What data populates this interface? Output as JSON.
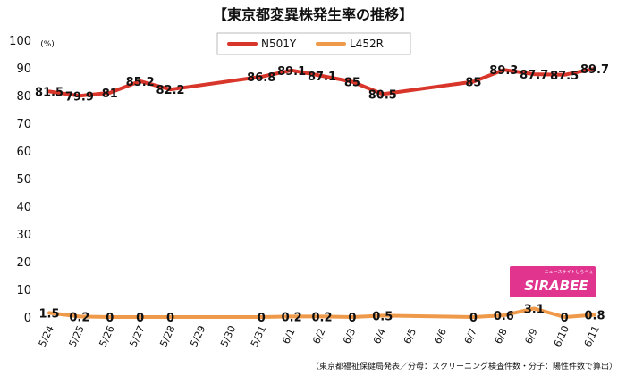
{
  "chart_data": {
    "type": "line",
    "title": "【東京都変異株発生率の推移】",
    "unit": "(%)",
    "categories": [
      "5/24",
      "5/25",
      "5/26",
      "5/27",
      "5/28",
      "5/29",
      "5/30",
      "5/31",
      "6/1",
      "6/2",
      "6/3",
      "6/4",
      "6/5",
      "6/6",
      "6/7",
      "6/8",
      "6/9",
      "6/10",
      "6/11"
    ],
    "series": [
      {
        "name": "N501Y",
        "color": "#d9362b",
        "values": [
          81.5,
          79.9,
          81,
          85.2,
          82.2,
          null,
          null,
          86.8,
          89.1,
          87.1,
          85,
          80.5,
          null,
          null,
          85,
          89.3,
          87.7,
          87.5,
          89.7
        ],
        "labels": [
          "81.5",
          "79.9",
          "81",
          "85.2",
          "82.2",
          "",
          "",
          "86.8",
          "89.1",
          "87.1",
          "85",
          "80.5",
          "",
          "",
          "85",
          "89.3",
          "87.7",
          "87.5",
          "89.7"
        ]
      },
      {
        "name": "L452R",
        "color": "#ef9a4a",
        "values": [
          1.5,
          0.2,
          0,
          0,
          0,
          null,
          null,
          0,
          0.2,
          0.2,
          0,
          0.5,
          null,
          null,
          0,
          0.6,
          3.1,
          0,
          0.8
        ],
        "labels": [
          "1.5",
          "0.2",
          "0",
          "0",
          "0",
          "",
          "",
          "0",
          "0.2",
          "0.2",
          "0",
          "0.5",
          "",
          "",
          "0",
          "0.6",
          "3.1",
          "0",
          "0.8"
        ]
      }
    ],
    "ylim": [
      0,
      100
    ],
    "yticks": [
      0,
      10,
      20,
      30,
      40,
      50,
      60,
      70,
      80,
      90,
      100
    ],
    "grid": false,
    "legend_position": "top-center",
    "source": "（東京都福祉保健局発表／分母：スクリーニング検査件数・分子：陽性件数で算出）"
  },
  "logo": {
    "text": "SIRABEE",
    "tagline": "ニュースサイトしらべぇ",
    "background": "#e0348f"
  }
}
